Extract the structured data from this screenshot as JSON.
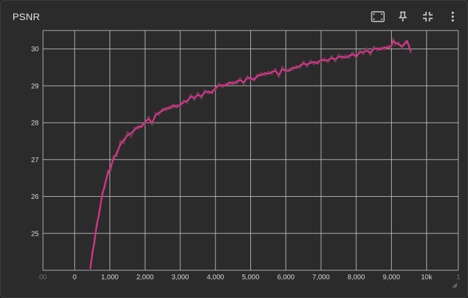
{
  "card": {
    "title": "PSNR"
  },
  "toolbar": [
    {
      "name": "fit-domain",
      "icon": "fit-to-screen-icon"
    },
    {
      "name": "pin-card",
      "icon": "pin-icon"
    },
    {
      "name": "toggle-expand",
      "icon": "collapse-icon"
    },
    {
      "name": "more-options",
      "icon": "more-vertical-icon"
    }
  ],
  "chart_data": {
    "type": "line",
    "title": "",
    "xlabel": "",
    "ylabel": "",
    "xlim": [
      -900,
      10900
    ],
    "ylim": [
      24.0,
      30.5
    ],
    "grid": true,
    "x_ticks": [
      "00",
      "0",
      "1,000",
      "2,000",
      "3,000",
      "4,000",
      "5,000",
      "6,000",
      "7,000",
      "8,000",
      "9,000",
      "10k",
      "1"
    ],
    "x_tick_values": [
      -900,
      0,
      1000,
      2000,
      3000,
      4000,
      5000,
      6000,
      7000,
      8000,
      9000,
      10000,
      10900
    ],
    "y_ticks": [
      "25",
      "26",
      "27",
      "28",
      "29",
      "30"
    ],
    "y_tick_values": [
      25,
      26,
      27,
      28,
      29,
      30
    ],
    "colors": {
      "smoothed": "#e6308f",
      "raw": "#6b4257",
      "grid": "#c9c9c9",
      "background": "#2b2b2b"
    },
    "series": [
      {
        "x": [
          440,
          500,
          560,
          620,
          700,
          780,
          860,
          940,
          1020,
          1100,
          1200,
          1300,
          1400,
          1500,
          1600,
          1700,
          1800,
          1900,
          2000,
          2100,
          2200,
          2300,
          2400,
          2500,
          2600,
          2700,
          2800,
          2900,
          3000,
          3100,
          3200,
          3300,
          3400,
          3500,
          3600,
          3700,
          3800,
          3900,
          4000,
          4100,
          4200,
          4300,
          4400,
          4500,
          4600,
          4700,
          4800,
          4900,
          5000,
          5100,
          5200,
          5300,
          5400,
          5500,
          5600,
          5700,
          5800,
          5900,
          6000,
          6100,
          6200,
          6300,
          6400,
          6500,
          6600,
          6700,
          6800,
          6900,
          7000,
          7100,
          7200,
          7300,
          7400,
          7500,
          7600,
          7700,
          7800,
          7900,
          8000,
          8100,
          8200,
          8300,
          8400,
          8500,
          8600,
          8700,
          8800,
          8900,
          9000,
          9050,
          9100,
          9200,
          9300,
          9400,
          9450,
          9500,
          9550
        ],
        "values": [
          24.05,
          24.4,
          24.8,
          25.15,
          25.6,
          26.0,
          26.35,
          26.6,
          26.8,
          27.0,
          27.2,
          27.4,
          27.55,
          27.65,
          27.72,
          27.8,
          27.9,
          27.88,
          28.02,
          28.1,
          28.0,
          28.2,
          28.28,
          28.32,
          28.4,
          28.38,
          28.48,
          28.42,
          28.5,
          28.55,
          28.6,
          28.7,
          28.68,
          28.75,
          28.72,
          28.82,
          28.85,
          28.8,
          28.95,
          29.0,
          29.02,
          29.0,
          29.1,
          29.05,
          29.12,
          29.15,
          29.1,
          29.2,
          29.22,
          29.15,
          29.3,
          29.28,
          29.35,
          29.32,
          29.38,
          29.4,
          29.3,
          29.45,
          29.42,
          29.4,
          29.5,
          29.48,
          29.55,
          29.6,
          29.58,
          29.62,
          29.65,
          29.6,
          29.72,
          29.68,
          29.7,
          29.75,
          29.72,
          29.78,
          29.8,
          29.76,
          29.82,
          29.85,
          29.8,
          29.9,
          29.92,
          29.95,
          29.9,
          30.0,
          30.02,
          29.98,
          30.05,
          30.02,
          30.1,
          30.22,
          30.18,
          30.12,
          30.08,
          30.15,
          30.22,
          30.05,
          29.95
        ]
      }
    ]
  }
}
